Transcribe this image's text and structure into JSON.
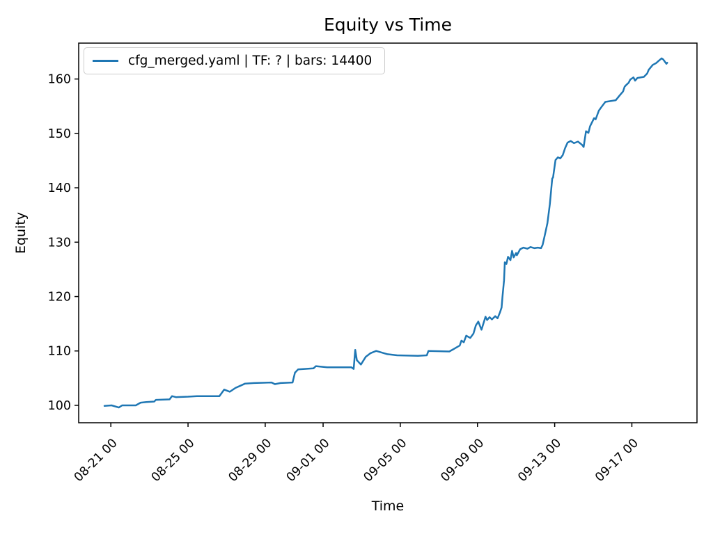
{
  "figure": {
    "background": "#ffffff",
    "text_color": "#000000"
  },
  "chart_data": {
    "type": "line",
    "title": "Equity vs Time",
    "xlabel": "Time",
    "ylabel": "Equity",
    "grid": false,
    "legend": {
      "position": "upper-left",
      "label": "cfg_merged.yaml | TF: ? | bars: 14400"
    },
    "x_tick_labels": [
      "08-21 00",
      "08-25 00",
      "08-29 00",
      "09-01 00",
      "09-05 00",
      "09-09 00",
      "09-13 00",
      "09-17 00"
    ],
    "y_ticks": [
      100,
      110,
      120,
      130,
      140,
      150,
      160
    ],
    "xlim": [
      "08-19 08",
      "09-20 09"
    ],
    "ylim": [
      96.8,
      166.6
    ],
    "series": [
      {
        "name": "cfg_merged.yaml | TF: ? | bars: 14400",
        "color": "#1f77b4",
        "points": [
          [
            "08-20 16",
            99.9
          ],
          [
            "08-21 01",
            100.0
          ],
          [
            "08-21 10",
            99.6
          ],
          [
            "08-21 14",
            100.0
          ],
          [
            "08-22 07",
            100.0
          ],
          [
            "08-22 13",
            100.5
          ],
          [
            "08-22 20",
            100.6
          ],
          [
            "08-23 06",
            100.7
          ],
          [
            "08-23 08",
            101.0
          ],
          [
            "08-24 01",
            101.1
          ],
          [
            "08-24 04",
            101.7
          ],
          [
            "08-24 09",
            101.5
          ],
          [
            "08-25 00",
            101.6
          ],
          [
            "08-25 11",
            101.7
          ],
          [
            "08-26 15",
            101.7
          ],
          [
            "08-26 21",
            102.9
          ],
          [
            "08-27 04",
            102.5
          ],
          [
            "08-27 11",
            103.2
          ],
          [
            "08-27 17",
            103.6
          ],
          [
            "08-27 23",
            104.0
          ],
          [
            "08-28 10",
            104.1
          ],
          [
            "08-29 08",
            104.2
          ],
          [
            "08-29 12",
            103.9
          ],
          [
            "08-29 19",
            104.1
          ],
          [
            "08-30 10",
            104.2
          ],
          [
            "08-30 13",
            106.0
          ],
          [
            "08-30 17",
            106.6
          ],
          [
            "08-31 12",
            106.8
          ],
          [
            "08-31 15",
            107.2
          ],
          [
            "09-01 05",
            107.0
          ],
          [
            "09-02 11",
            107.0
          ],
          [
            "09-02 14",
            106.7
          ],
          [
            "09-02 16",
            110.2
          ],
          [
            "09-02 18",
            108.3
          ],
          [
            "09-02 23",
            107.5
          ],
          [
            "09-03 05",
            108.9
          ],
          [
            "09-03 11",
            109.6
          ],
          [
            "09-03 18",
            110.0
          ],
          [
            "09-04 01",
            109.7
          ],
          [
            "09-04 08",
            109.4
          ],
          [
            "09-04 20",
            109.2
          ],
          [
            "09-05 22",
            109.1
          ],
          [
            "09-06 09",
            109.2
          ],
          [
            "09-06 11",
            110.0
          ],
          [
            "09-07 13",
            109.9
          ],
          [
            "09-07 19",
            110.4
          ],
          [
            "09-08 02",
            111.0
          ],
          [
            "09-08 04",
            111.9
          ],
          [
            "09-08 07",
            111.6
          ],
          [
            "09-08 10",
            112.8
          ],
          [
            "09-08 15",
            112.4
          ],
          [
            "09-08 19",
            113.2
          ],
          [
            "09-08 22",
            114.7
          ],
          [
            "09-09 01",
            115.4
          ],
          [
            "09-09 05",
            113.9
          ],
          [
            "09-09 10",
            116.3
          ],
          [
            "09-09 12",
            115.7
          ],
          [
            "09-09 15",
            116.2
          ],
          [
            "09-09 18",
            115.8
          ],
          [
            "09-09 22",
            116.4
          ],
          [
            "09-10 01",
            116.0
          ],
          [
            "09-10 04",
            117.1
          ],
          [
            "09-10 06",
            118.0
          ],
          [
            "09-10 07",
            119.9
          ],
          [
            "09-10 09",
            123.0
          ],
          [
            "09-10 10",
            126.3
          ],
          [
            "09-10 12",
            126.0
          ],
          [
            "09-10 14",
            127.3
          ],
          [
            "09-10 17",
            126.7
          ],
          [
            "09-10 19",
            128.4
          ],
          [
            "09-10 21",
            127.2
          ],
          [
            "09-11 00",
            128.0
          ],
          [
            "09-11 01",
            127.6
          ],
          [
            "09-11 05",
            128.7
          ],
          [
            "09-11 09",
            129.0
          ],
          [
            "09-11 14",
            128.8
          ],
          [
            "09-11 18",
            129.1
          ],
          [
            "09-11 23",
            128.9
          ],
          [
            "09-12 03",
            129.0
          ],
          [
            "09-12 07",
            128.9
          ],
          [
            "09-12 09",
            129.5
          ],
          [
            "09-12 12",
            131.5
          ],
          [
            "09-12 15",
            133.5
          ],
          [
            "09-12 18",
            137.0
          ],
          [
            "09-12 21",
            141.7
          ],
          [
            "09-12 22",
            141.9
          ],
          [
            "09-12 23",
            143.0
          ],
          [
            "09-13 01",
            145.1
          ],
          [
            "09-13 04",
            145.6
          ],
          [
            "09-13 07",
            145.4
          ],
          [
            "09-13 10",
            146.0
          ],
          [
            "09-13 13",
            147.3
          ],
          [
            "09-13 16",
            148.3
          ],
          [
            "09-13 20",
            148.6
          ],
          [
            "09-14 00",
            148.2
          ],
          [
            "09-14 05",
            148.5
          ],
          [
            "09-14 10",
            147.9
          ],
          [
            "09-14 12",
            147.5
          ],
          [
            "09-14 15",
            150.4
          ],
          [
            "09-14 18",
            150.1
          ],
          [
            "09-14 20",
            151.3
          ],
          [
            "09-15 01",
            152.8
          ],
          [
            "09-15 03",
            152.6
          ],
          [
            "09-15 07",
            154.2
          ],
          [
            "09-15 11",
            155.0
          ],
          [
            "09-15 15",
            155.8
          ],
          [
            "09-16 00",
            156.0
          ],
          [
            "09-16 04",
            156.1
          ],
          [
            "09-16 09",
            157.0
          ],
          [
            "09-16 13",
            157.7
          ],
          [
            "09-16 15",
            158.6
          ],
          [
            "09-16 17",
            158.9
          ],
          [
            "09-16 20",
            159.3
          ],
          [
            "09-16 22",
            159.9
          ],
          [
            "09-17 02",
            160.3
          ],
          [
            "09-17 04",
            159.7
          ],
          [
            "09-17 07",
            160.2
          ],
          [
            "09-17 15",
            160.4
          ],
          [
            "09-17 19",
            161.0
          ],
          [
            "09-17 21",
            161.7
          ],
          [
            "09-18 02",
            162.6
          ],
          [
            "09-18 06",
            162.9
          ],
          [
            "09-18 09",
            163.3
          ],
          [
            "09-18 13",
            163.8
          ],
          [
            "09-18 15",
            163.6
          ],
          [
            "09-18 19",
            162.8
          ],
          [
            "09-18 20",
            163.0
          ]
        ]
      }
    ]
  }
}
